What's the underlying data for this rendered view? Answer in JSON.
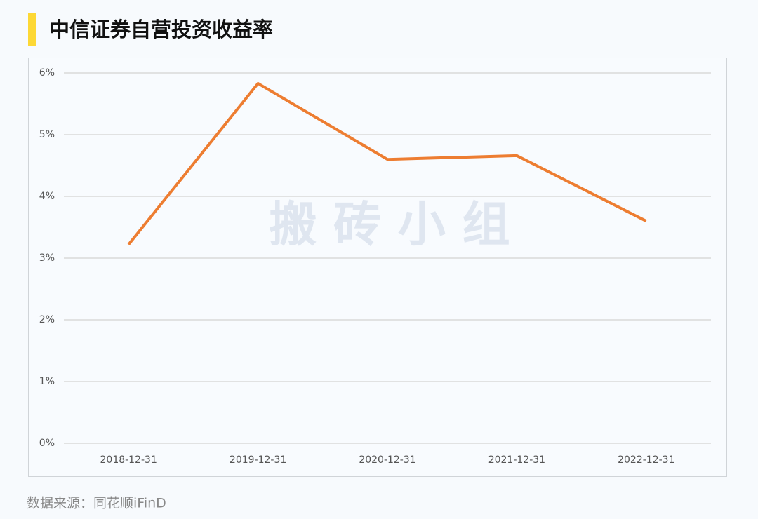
{
  "chart_data": {
    "type": "line",
    "title": "中信证券自营投资收益率",
    "watermark": "搬 砖 小 组",
    "source": "数据来源：同花顺iFinD",
    "categories": [
      "2018-12-31",
      "2019-12-31",
      "2020-12-31",
      "2021-12-31",
      "2022-12-31"
    ],
    "values": [
      3.22,
      5.83,
      4.6,
      4.66,
      3.6
    ],
    "color": "#ed7d31",
    "ylim": [
      0,
      6
    ],
    "yticks": [
      {
        "value": 0,
        "label": "0%"
      },
      {
        "value": 1,
        "label": "1%"
      },
      {
        "value": 2,
        "label": "2%"
      },
      {
        "value": 3,
        "label": "3%"
      },
      {
        "value": 4,
        "label": "4%"
      },
      {
        "value": 5,
        "label": "5%"
      },
      {
        "value": 6,
        "label": "6%"
      }
    ],
    "grid": true
  }
}
